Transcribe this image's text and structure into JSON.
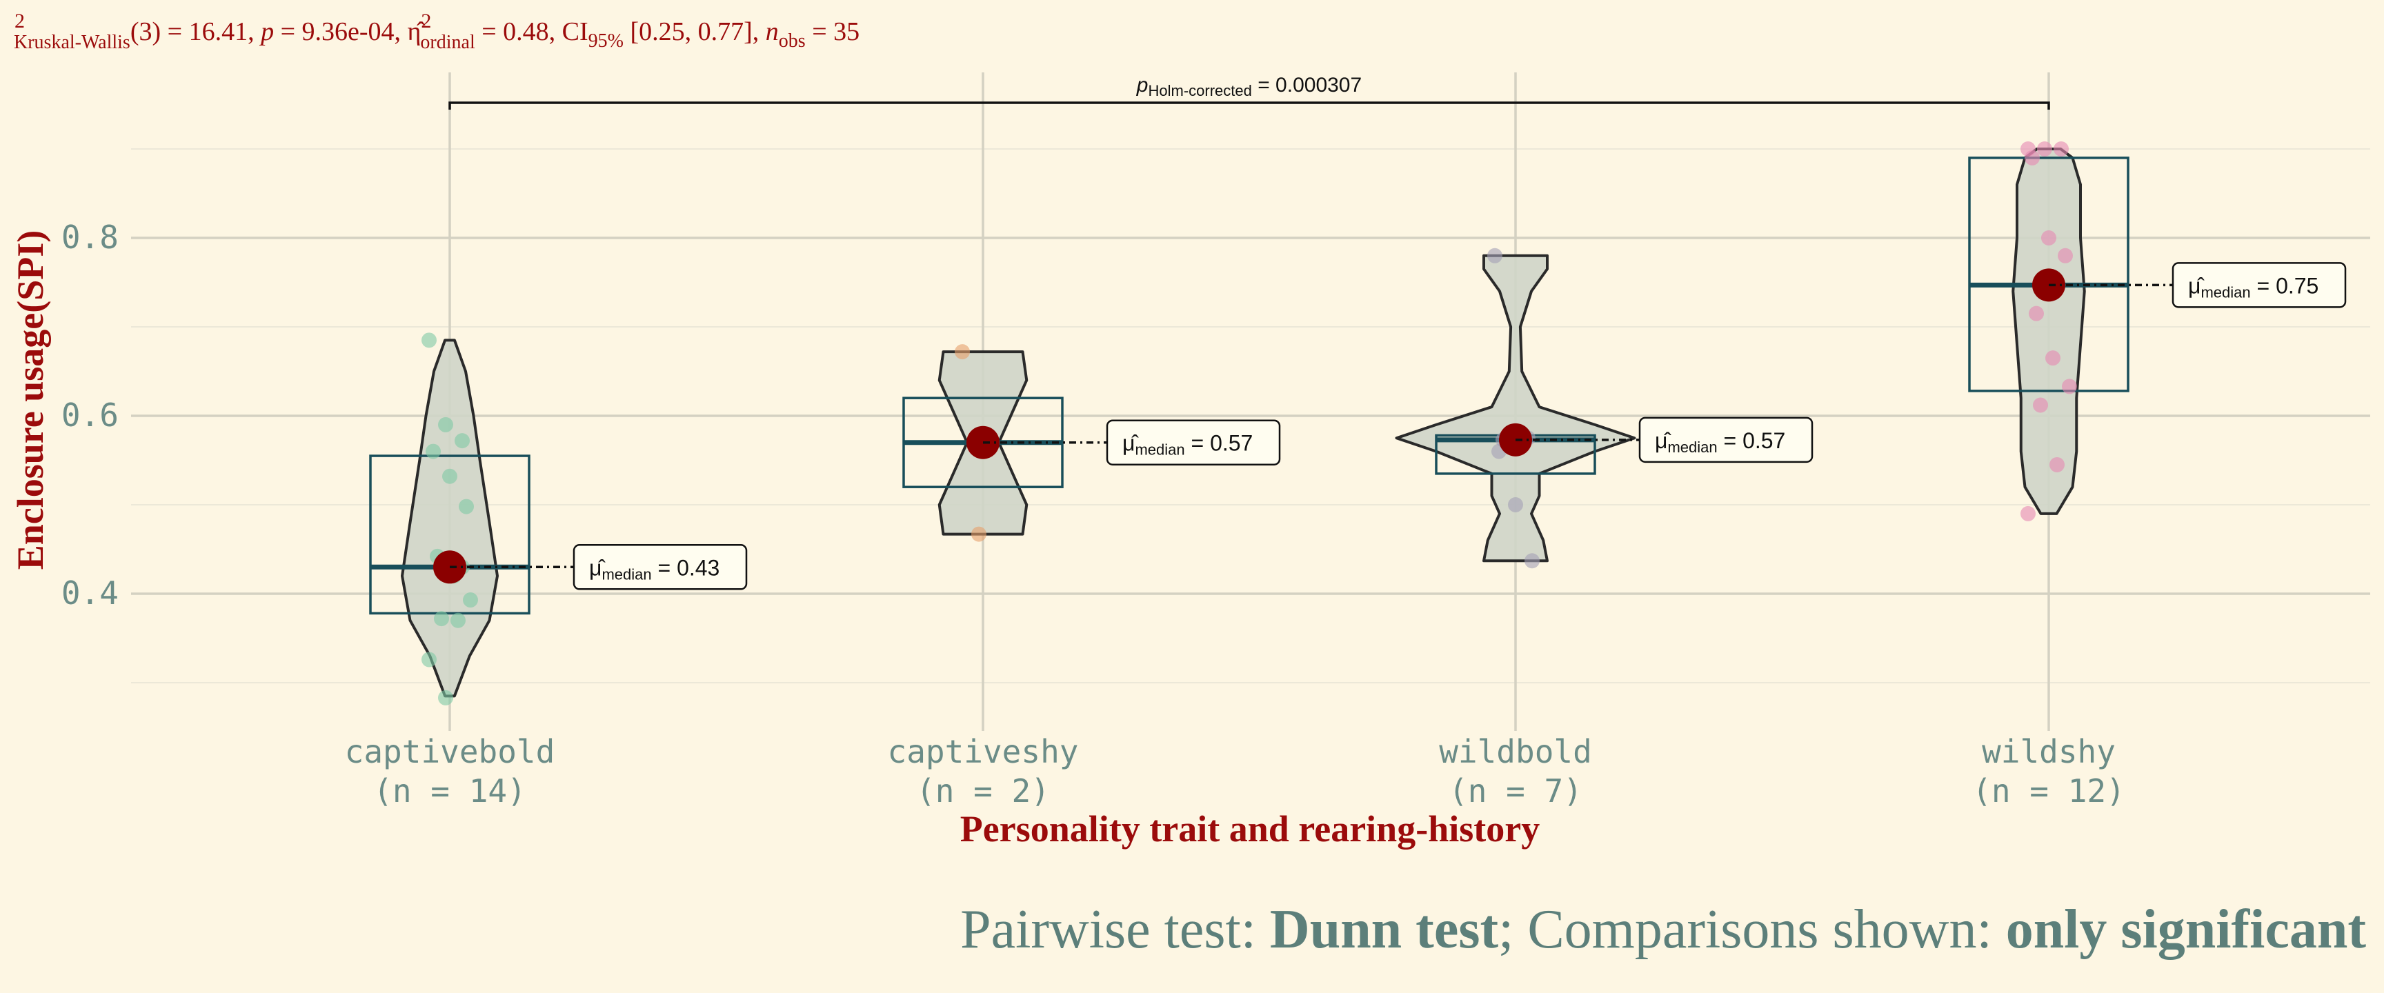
{
  "colors": {
    "background": "#fdf6e3",
    "title_red": "#9b0b0b",
    "tick_text": "#6b8c87",
    "subtitle_text": "#5c7f7a",
    "grid_major": "#d4d1c2",
    "grid_minor": "#ece8d8",
    "violin_fill": "#cfd5c8",
    "box_stroke": "#184e5a",
    "mean_point": "#8b0000",
    "label_bg": "#fffdf0"
  },
  "chart_data": {
    "type": "violin",
    "title": {
      "stat_text": "(3) = 16.41, ",
      "stat_subscript": "Kruskal-Wallis",
      "p_text": " = 9.36e-04, ",
      "effsize_subscript": "ordinal",
      "effsize_text": " = 0.48, CI",
      "ci_subscript": "95%",
      "ci_text": " [0.25, 0.77], ",
      "n_subscript": "obs",
      "n_text": " = 35"
    },
    "xlabel": "Personality trait and rearing-history",
    "ylabel": "Enclosure usage(SPI)",
    "ylim": [
      0.22,
      0.98
    ],
    "yticks": [
      "0.4",
      "0.6",
      "0.8"
    ],
    "grid": true,
    "caption": {
      "prefix": "Pairwise test: ",
      "test": "Dunn test",
      "middle": "; Comparisons shown: ",
      "shown": "only significant"
    },
    "pairwise": {
      "from": "captivebold",
      "to": "wildshy",
      "label_main": "p",
      "label_sub": "Holm-corrected",
      "label_value": " = 0.000307"
    },
    "groups": [
      {
        "name": "captivebold",
        "n_label": "(n = 14)",
        "color": "#7ec9a5",
        "median": 0.43,
        "median_label": "0.43",
        "box": {
          "q1": 0.378,
          "q3": 0.555
        },
        "points": [
          0.685,
          0.59,
          0.572,
          0.56,
          0.532,
          0.498,
          0.442,
          0.42,
          0.393,
          0.372,
          0.37,
          0.326,
          0.283,
          0.43
        ],
        "violin": [
          [
            0.285,
            0.006
          ],
          [
            0.33,
            0.025
          ],
          [
            0.37,
            0.05
          ],
          [
            0.42,
            0.06
          ],
          [
            0.48,
            0.05
          ],
          [
            0.55,
            0.038
          ],
          [
            0.6,
            0.03
          ],
          [
            0.65,
            0.02
          ],
          [
            0.685,
            0.006
          ]
        ]
      },
      {
        "name": "captiveshy",
        "n_label": "(n = 2)",
        "color": "#e6a06a",
        "median": 0.57,
        "median_label": "0.57",
        "box": {
          "q1": 0.52,
          "q3": 0.62
        },
        "points": [
          0.672,
          0.467
        ],
        "violin": [
          [
            0.467,
            0.05
          ],
          [
            0.5,
            0.055
          ],
          [
            0.54,
            0.035
          ],
          [
            0.57,
            0.02
          ],
          [
            0.6,
            0.035
          ],
          [
            0.64,
            0.055
          ],
          [
            0.672,
            0.05
          ]
        ]
      },
      {
        "name": "wildbold",
        "n_label": "(n = 7)",
        "color": "#a3a0b6",
        "median": 0.573,
        "median_label": "0.57",
        "box": {
          "q1": 0.535,
          "q3": 0.578
        },
        "points": [
          0.78,
          0.58,
          0.575,
          0.56,
          0.5,
          0.437,
          0.573
        ],
        "violin": [
          [
            0.437,
            0.04
          ],
          [
            0.46,
            0.035
          ],
          [
            0.49,
            0.02
          ],
          [
            0.51,
            0.03
          ],
          [
            0.535,
            0.03
          ],
          [
            0.56,
            0.1
          ],
          [
            0.575,
            0.15
          ],
          [
            0.59,
            0.1
          ],
          [
            0.61,
            0.03
          ],
          [
            0.65,
            0.008
          ],
          [
            0.7,
            0.006
          ],
          [
            0.74,
            0.02
          ],
          [
            0.765,
            0.04
          ],
          [
            0.78,
            0.04
          ]
        ]
      },
      {
        "name": "wildshy",
        "n_label": "(n = 12)",
        "color": "#e688b3",
        "median": 0.747,
        "median_label": "0.75",
        "box": {
          "q1": 0.628,
          "q3": 0.89
        },
        "points": [
          0.9,
          0.9,
          0.9,
          0.89,
          0.8,
          0.78,
          0.715,
          0.665,
          0.633,
          0.612,
          0.545,
          0.49
        ],
        "violin": [
          [
            0.49,
            0.01
          ],
          [
            0.52,
            0.03
          ],
          [
            0.56,
            0.035
          ],
          [
            0.62,
            0.035
          ],
          [
            0.68,
            0.04
          ],
          [
            0.74,
            0.045
          ],
          [
            0.8,
            0.04
          ],
          [
            0.86,
            0.04
          ],
          [
            0.89,
            0.03
          ],
          [
            0.9,
            0.015
          ]
        ]
      }
    ]
  }
}
